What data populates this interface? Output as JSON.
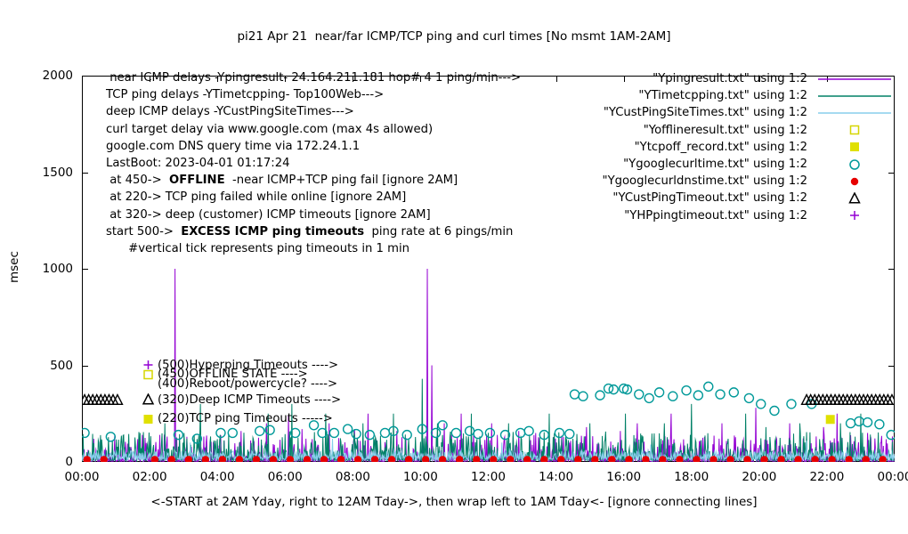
{
  "title": "pi21 Apr 21  near/far ICMP/TCP ping and curl times [No msmt 1AM-2AM]",
  "legend": {
    "items": [
      {
        "label": "\"Ypingresult.txt\" using 1:2",
        "style": "line",
        "color": "#9400d3"
      },
      {
        "label": "\"YTimetcpping.txt\" using 1:2",
        "style": "line",
        "color": "#008066"
      },
      {
        "label": "\"YCustPingSiteTimes.txt\" using 1:2",
        "style": "line",
        "color": "#87ceeb"
      },
      {
        "label": "\"Yofflineresult.txt\" using 1:2",
        "style": "square-open",
        "color": "#d6d600"
      },
      {
        "label": "\"Ytcpoff_record.txt\" using 1:2",
        "style": "square-filled",
        "color": "#e0e000"
      },
      {
        "label": "\"Ygooglecurltime.txt\" using 1:2",
        "style": "circle-open",
        "color": "#009999"
      },
      {
        "label": "\"Ygooglecurldnstime.txt\" using 1:2",
        "style": "circle-filled",
        "color": "#e60000"
      },
      {
        "label": "\"YCustPingTimeout.txt\" using 1:2",
        "style": "triangle-open",
        "color": "#000000"
      },
      {
        "label": "\"YHPpingtimeout.txt\" using 1:2",
        "style": "plus",
        "color": "#9400d3"
      }
    ]
  },
  "annotations": {
    "info_lines": [
      {
        "pre": " near ICMP delays -Ypingresult- 24.164.211.181 hop# 4 1 ping/min--->",
        "bold": "",
        "post": ""
      },
      {
        "pre": "TCP ping delays -YTimetcpping- Top100Web--->",
        "bold": "",
        "post": ""
      },
      {
        "pre": "deep ICMP delays -YCustPingSiteTimes--->",
        "bold": "",
        "post": ""
      },
      {
        "pre": "curl target delay via www.google.com (max 4s allowed)",
        "bold": "",
        "post": ""
      },
      {
        "pre": "google.com DNS query time via 172.24.1.1",
        "bold": "",
        "post": ""
      },
      {
        "pre": "LastBoot: 2023-04-01 01:17:24",
        "bold": "",
        "post": ""
      },
      {
        "pre": " at 450->  ",
        "bold": "OFFLINE",
        "post": "  -near ICMP+TCP ping fail [ignore 2AM]"
      },
      {
        "pre": " at 220-> TCP ping failed while online [ignore 2AM]",
        "bold": "",
        "post": ""
      },
      {
        "pre": " at 320-> deep (customer) ICMP timeouts [ignore 2AM]",
        "bold": "",
        "post": ""
      },
      {
        "pre": "start 500->  ",
        "bold": "EXCESS ICMP ping timeouts",
        "post": "  ping rate at 6 pings/min"
      },
      {
        "pre": "      #vertical tick represents ping timeouts in 1 min",
        "bold": "",
        "post": ""
      }
    ],
    "level_labels": [
      {
        "value": 500,
        "marker": "plus",
        "color": "#9400d3",
        "label": "(500)Hyperping Timeouts ---->"
      },
      {
        "value": 450,
        "marker": "square-open",
        "color": "#d6d600",
        "label": "(450)OFFLINE STATE ---->"
      },
      {
        "value": 400,
        "marker": "",
        "color": "#000000",
        "label": "(400)Reboot/powercycle? ---->"
      },
      {
        "value": 320,
        "marker": "triangle-open",
        "color": "#000000",
        "label": "(320)Deep ICMP Timeouts ---->"
      },
      {
        "value": 220,
        "marker": "square-filled",
        "color": "#e0e000",
        "label": "(220)TCP ping Timeouts ----->"
      }
    ]
  },
  "chart_data": {
    "type": "line",
    "title": "pi21 Apr 21  near/far ICMP/TCP ping and curl times [No msmt 1AM-2AM]",
    "xlabel": "<-START at 2AM Yday, right to 12AM Tday->, then wrap left to 1AM Tday<- [ignore connecting lines]",
    "ylabel": "msec",
    "ylim": [
      0,
      2000
    ],
    "xlim_hours": [
      0,
      24
    ],
    "grid": false,
    "legend_position": "top-right-inside",
    "x_ticks": [
      "00:00",
      "02:00",
      "04:00",
      "06:00",
      "08:00",
      "10:00",
      "12:00",
      "14:00",
      "16:00",
      "18:00",
      "20:00",
      "22:00",
      "00:00"
    ],
    "y_ticks": [
      0,
      500,
      1000,
      1500,
      2000
    ],
    "series": [
      {
        "name": "Ypingresult.txt",
        "style": "line",
        "color": "#9400d3",
        "seed": 11,
        "baseline": 3,
        "noise": 140,
        "pow": 5,
        "spikes": [
          [
            0.35,
            120
          ],
          [
            2.3,
            140
          ],
          [
            2.75,
            1000
          ],
          [
            3.1,
            130
          ],
          [
            4.7,
            160
          ],
          [
            5.45,
            200
          ],
          [
            6.1,
            240
          ],
          [
            6.5,
            170
          ],
          [
            7.3,
            200
          ],
          [
            8.05,
            170
          ],
          [
            8.45,
            250
          ],
          [
            9.3,
            160
          ],
          [
            10.2,
            1000
          ],
          [
            10.33,
            500
          ],
          [
            10.7,
            200
          ],
          [
            11.2,
            250
          ],
          [
            12.1,
            200
          ],
          [
            12.9,
            160
          ],
          [
            13.4,
            150
          ],
          [
            14.9,
            180
          ],
          [
            15.9,
            160
          ],
          [
            16.4,
            200
          ],
          [
            17.4,
            250
          ],
          [
            18.9,
            200
          ],
          [
            19.9,
            280
          ],
          [
            20.9,
            200
          ],
          [
            21.9,
            180
          ],
          [
            22.3,
            250
          ],
          [
            23.2,
            150
          ]
        ]
      },
      {
        "name": "YTimetcpping.txt",
        "style": "line",
        "color": "#008066",
        "seed": 7,
        "baseline": 8,
        "noise": 150,
        "pow": 4,
        "spikes": [
          [
            0.5,
            100
          ],
          [
            2.45,
            200
          ],
          [
            3.5,
            300
          ],
          [
            5.5,
            250
          ],
          [
            6.2,
            300
          ],
          [
            7.2,
            250
          ],
          [
            8.3,
            200
          ],
          [
            9.2,
            250
          ],
          [
            10.05,
            430
          ],
          [
            10.5,
            200
          ],
          [
            11.5,
            250
          ],
          [
            12.6,
            200
          ],
          [
            13.8,
            250
          ],
          [
            15,
            200
          ],
          [
            16.05,
            250
          ],
          [
            17.2,
            200
          ],
          [
            18,
            300
          ],
          [
            19.6,
            250
          ],
          [
            20.2,
            180
          ],
          [
            21.2,
            200
          ],
          [
            22.4,
            200
          ],
          [
            23,
            250
          ]
        ]
      },
      {
        "name": "YCustPingSiteTimes.txt",
        "style": "line",
        "color": "#87ceeb",
        "seed": 3,
        "baseline": 12,
        "noise": 45,
        "pow": 2,
        "spikes": [
          [
            3.2,
            100
          ],
          [
            7.4,
            120
          ],
          [
            12.4,
            100
          ],
          [
            16.8,
            90
          ],
          [
            21.4,
            110
          ]
        ]
      },
      {
        "name": "Yofflineresult.txt",
        "style": "square-open",
        "color": "#d6d600",
        "points": []
      },
      {
        "name": "Ytcpoff_record.txt",
        "style": "square-filled",
        "color": "#e0e000",
        "points": [
          [
            22.1,
            220
          ]
        ]
      },
      {
        "name": "Ygooglecurltime.txt",
        "style": "circle-open",
        "color": "#009999",
        "points": [
          [
            0.08,
            150
          ],
          [
            0.85,
            130
          ],
          [
            2.85,
            140
          ],
          [
            3.4,
            120
          ],
          [
            4.1,
            150
          ],
          [
            4.45,
            150
          ],
          [
            5.25,
            160
          ],
          [
            5.55,
            165
          ],
          [
            6.3,
            150
          ],
          [
            6.85,
            190
          ],
          [
            7.1,
            150
          ],
          [
            7.45,
            150
          ],
          [
            7.85,
            170
          ],
          [
            8.1,
            145
          ],
          [
            8.5,
            140
          ],
          [
            8.95,
            150
          ],
          [
            9.2,
            160
          ],
          [
            9.6,
            140
          ],
          [
            10.05,
            170
          ],
          [
            10.45,
            150
          ],
          [
            10.65,
            190
          ],
          [
            11.05,
            150
          ],
          [
            11.45,
            160
          ],
          [
            11.7,
            145
          ],
          [
            12.05,
            150
          ],
          [
            12.5,
            140
          ],
          [
            12.95,
            150
          ],
          [
            13.2,
            160
          ],
          [
            13.65,
            140
          ],
          [
            14.1,
            150
          ],
          [
            14.4,
            145
          ],
          [
            14.55,
            350
          ],
          [
            14.8,
            340
          ],
          [
            15.3,
            345
          ],
          [
            15.55,
            380
          ],
          [
            15.7,
            375
          ],
          [
            16,
            380
          ],
          [
            16.1,
            375
          ],
          [
            16.45,
            350
          ],
          [
            16.75,
            330
          ],
          [
            17.05,
            360
          ],
          [
            17.45,
            340
          ],
          [
            17.85,
            370
          ],
          [
            18.2,
            345
          ],
          [
            18.5,
            390
          ],
          [
            18.85,
            350
          ],
          [
            19.25,
            360
          ],
          [
            19.7,
            330
          ],
          [
            20.05,
            300
          ],
          [
            20.45,
            265
          ],
          [
            20.95,
            300
          ],
          [
            21.55,
            300
          ],
          [
            22.7,
            200
          ],
          [
            22.95,
            210
          ],
          [
            23.2,
            205
          ],
          [
            23.55,
            195
          ],
          [
            23.9,
            140
          ]
        ]
      },
      {
        "name": "Ygooglecurldnstime.txt",
        "style": "circle-filled",
        "color": "#e60000",
        "value": 12,
        "hours": [
          0.15,
          0.65,
          2.15,
          2.65,
          3.15,
          3.65,
          4.15,
          4.65,
          5.15,
          5.65,
          6.15,
          6.65,
          7.15,
          7.65,
          8.15,
          8.65,
          9.15,
          9.65,
          10.15,
          10.65,
          11.15,
          11.65,
          12.15,
          12.65,
          13.15,
          13.65,
          14.15,
          14.65,
          15.15,
          15.65,
          16.15,
          16.65,
          17.15,
          17.65,
          18.15,
          18.65,
          19.15,
          19.65,
          20.15,
          20.65,
          21.15,
          21.65,
          22.15,
          22.65,
          23.15,
          23.65
        ]
      },
      {
        "name": "YCustPingTimeout.txt",
        "style": "triangle-open",
        "color": "#000000",
        "value": 320,
        "hours": [
          0.08,
          0.2,
          0.32,
          0.44,
          0.56,
          0.68,
          0.8,
          0.92,
          1.05,
          21.4,
          21.52,
          21.64,
          21.76,
          21.88,
          22,
          22.12,
          22.24,
          22.36,
          22.48,
          22.6,
          22.72,
          22.84,
          22.96,
          23.08,
          23.2,
          23.32,
          23.44,
          23.56,
          23.68,
          23.8,
          23.92
        ]
      },
      {
        "name": "YHPpingtimeout.txt",
        "style": "plus",
        "color": "#9400d3",
        "points": []
      }
    ]
  }
}
